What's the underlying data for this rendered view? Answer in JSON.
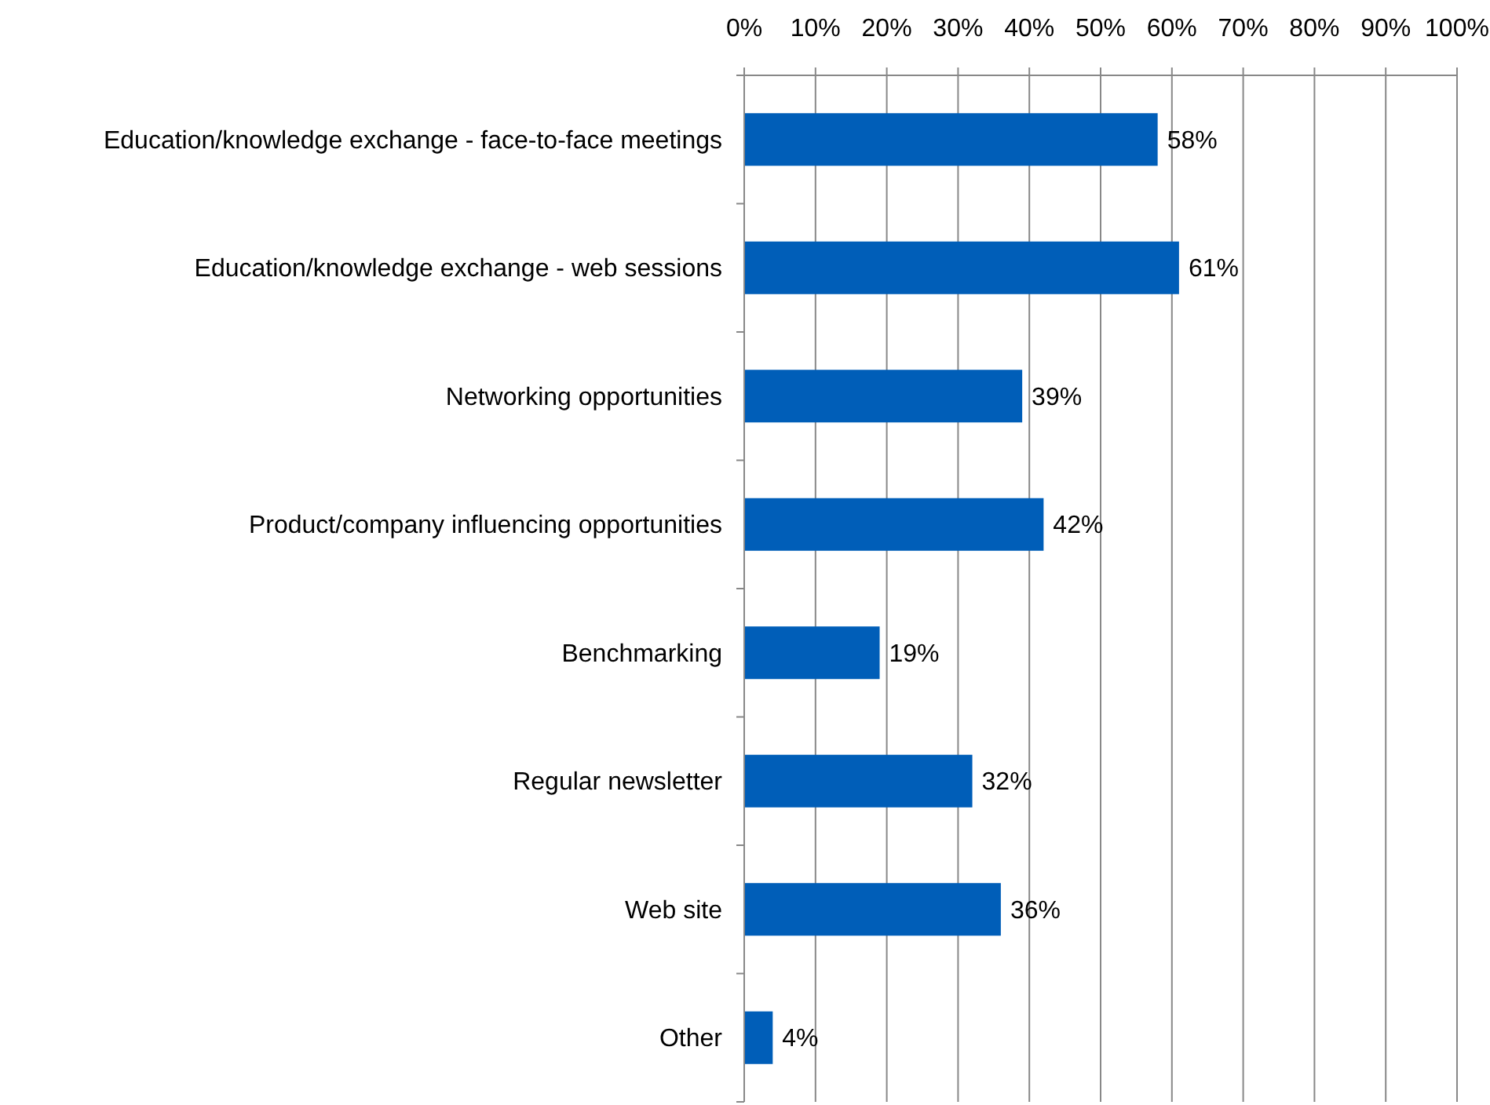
{
  "chart_data": {
    "type": "bar",
    "orientation": "horizontal",
    "categories": [
      "Education/knowledge exchange - face-to-face meetings",
      "Education/knowledge exchange - web sessions",
      "Networking opportunities",
      "Product/company influencing opportunities",
      "Benchmarking",
      "Regular newsletter",
      "Web site",
      "Other"
    ],
    "values": [
      58,
      61,
      39,
      42,
      19,
      32,
      36,
      4
    ],
    "value_labels": [
      "58%",
      "61%",
      "39%",
      "42%",
      "19%",
      "32%",
      "36%",
      "4%"
    ],
    "color": "#005eb8",
    "xlim": [
      0,
      100
    ],
    "xticks": [
      {
        "value": 0,
        "label": "0%"
      },
      {
        "value": 10,
        "label": "10%"
      },
      {
        "value": 20,
        "label": "20%"
      },
      {
        "value": 30,
        "label": "30%"
      },
      {
        "value": 40,
        "label": "40%"
      },
      {
        "value": 50,
        "label": "50%"
      },
      {
        "value": 60,
        "label": "60%"
      },
      {
        "value": 70,
        "label": "70%"
      },
      {
        "value": 80,
        "label": "80%"
      },
      {
        "value": 90,
        "label": "90%"
      },
      {
        "value": 100,
        "label": "100%"
      }
    ],
    "grid": "x"
  }
}
